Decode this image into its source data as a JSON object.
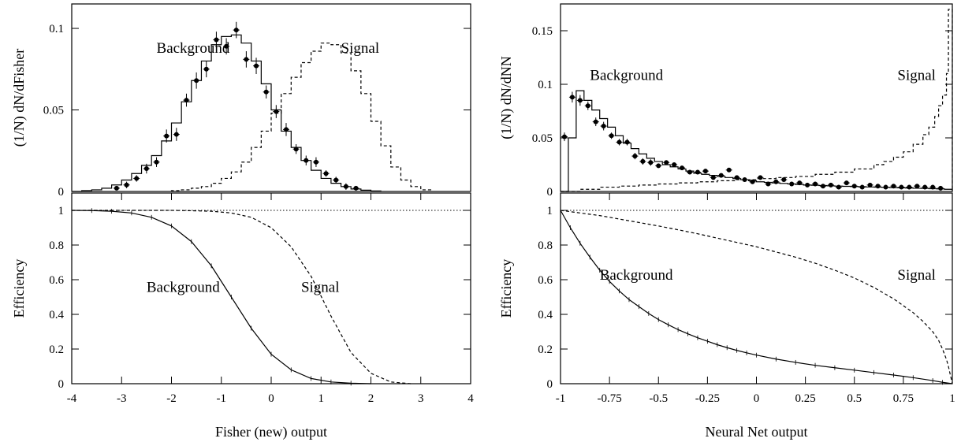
{
  "chart_data": [
    {
      "type": "line",
      "panel": "top-left",
      "ylabel": "(1/N) dN/dFisher",
      "xlim": [
        -4,
        4
      ],
      "ylim": [
        0,
        0.115
      ],
      "yticks": [
        0,
        0.05,
        0.1
      ],
      "ytick_labels": [
        "0",
        "0.05",
        "0.1"
      ],
      "annotations": [
        {
          "text": "Background",
          "x": -2.3,
          "y": 0.085
        },
        {
          "text": "Signal",
          "x": 1.4,
          "y": 0.085
        }
      ],
      "series": [
        {
          "key": "background-mc",
          "style": "solid-step",
          "x": [
            -4.0,
            -3.8,
            -3.6,
            -3.4,
            -3.2,
            -3.0,
            -2.8,
            -2.6,
            -2.4,
            -2.2,
            -2.0,
            -1.8,
            -1.6,
            -1.4,
            -1.2,
            -1.0,
            -0.8,
            -0.6,
            -0.4,
            -0.2,
            0.0,
            0.2,
            0.4,
            0.6,
            0.8,
            1.0,
            1.2,
            1.4,
            1.6,
            1.8,
            2.0,
            2.2
          ],
          "y": [
            0.0,
            0.0005,
            0.001,
            0.002,
            0.004,
            0.007,
            0.011,
            0.016,
            0.022,
            0.031,
            0.042,
            0.055,
            0.068,
            0.08,
            0.09,
            0.095,
            0.096,
            0.091,
            0.08,
            0.066,
            0.05,
            0.037,
            0.027,
            0.019,
            0.013,
            0.008,
            0.005,
            0.003,
            0.0015,
            0.0008,
            0.0003,
            0.0
          ]
        },
        {
          "key": "background-data",
          "style": "points-errorbars",
          "x": [
            -3.1,
            -2.9,
            -2.7,
            -2.5,
            -2.3,
            -2.1,
            -1.9,
            -1.7,
            -1.5,
            -1.3,
            -1.1,
            -0.9,
            -0.7,
            -0.5,
            -0.3,
            -0.1,
            0.1,
            0.3,
            0.5,
            0.7,
            0.9,
            1.1,
            1.3,
            1.5,
            1.7
          ],
          "y": [
            0.002,
            0.004,
            0.008,
            0.014,
            0.018,
            0.034,
            0.035,
            0.056,
            0.068,
            0.075,
            0.093,
            0.089,
            0.099,
            0.081,
            0.077,
            0.061,
            0.049,
            0.038,
            0.026,
            0.019,
            0.018,
            0.011,
            0.007,
            0.003,
            0.002
          ],
          "yerr": [
            0.001,
            0.002,
            0.002,
            0.003,
            0.003,
            0.004,
            0.004,
            0.004,
            0.005,
            0.005,
            0.005,
            0.005,
            0.005,
            0.005,
            0.005,
            0.004,
            0.004,
            0.004,
            0.003,
            0.003,
            0.003,
            0.002,
            0.002,
            0.002,
            0.001
          ]
        },
        {
          "key": "signal",
          "style": "dashed-step",
          "x": [
            -2.0,
            -1.8,
            -1.6,
            -1.4,
            -1.2,
            -1.0,
            -0.8,
            -0.6,
            -0.4,
            -0.2,
            0.0,
            0.2,
            0.4,
            0.6,
            0.8,
            1.0,
            1.2,
            1.4,
            1.6,
            1.8,
            2.0,
            2.2,
            2.4,
            2.6,
            2.8,
            3.0,
            3.2
          ],
          "y": [
            0.0005,
            0.001,
            0.002,
            0.003,
            0.005,
            0.008,
            0.012,
            0.018,
            0.027,
            0.037,
            0.048,
            0.06,
            0.07,
            0.079,
            0.086,
            0.091,
            0.09,
            0.085,
            0.074,
            0.06,
            0.043,
            0.028,
            0.015,
            0.007,
            0.003,
            0.001,
            0.0
          ]
        }
      ]
    },
    {
      "type": "line",
      "panel": "bottom-left",
      "xlabel": "Fisher (new) output",
      "ylabel": "Efficiency",
      "xlim": [
        -4,
        4
      ],
      "ylim": [
        0,
        1.1
      ],
      "xticks": [
        -4,
        -3,
        -2,
        -1,
        0,
        1,
        2,
        3,
        4
      ],
      "xtick_labels": [
        "-4",
        "-3",
        "-2",
        "-1",
        "0",
        "1",
        "2",
        "3",
        "4"
      ],
      "yticks": [
        0,
        0.2,
        0.4,
        0.6,
        0.8,
        1
      ],
      "ytick_labels": [
        "0",
        "0.2",
        "0.4",
        "0.6",
        "0.8",
        "1"
      ],
      "annotations": [
        {
          "text": "Background",
          "x": -2.5,
          "y": 0.53
        },
        {
          "text": "Signal",
          "x": 0.6,
          "y": 0.53
        }
      ],
      "series": [
        {
          "key": "background-eff",
          "style": "solid",
          "x": [
            -4.0,
            -3.6,
            -3.2,
            -2.8,
            -2.4,
            -2.0,
            -1.6,
            -1.2,
            -0.8,
            -0.4,
            0.0,
            0.4,
            0.8,
            1.2,
            1.6,
            2.0
          ],
          "y": [
            1.0,
            0.999,
            0.995,
            0.985,
            0.96,
            0.91,
            0.82,
            0.68,
            0.5,
            0.32,
            0.17,
            0.08,
            0.03,
            0.01,
            0.003,
            0.0
          ]
        },
        {
          "key": "signal-eff",
          "style": "dashed",
          "x": [
            -4.0,
            -2.0,
            -1.6,
            -1.2,
            -0.8,
            -0.4,
            0.0,
            0.4,
            0.8,
            1.2,
            1.6,
            2.0,
            2.4,
            2.8
          ],
          "y": [
            1.0,
            1.0,
            0.998,
            0.995,
            0.985,
            0.96,
            0.9,
            0.79,
            0.62,
            0.39,
            0.18,
            0.06,
            0.01,
            0.0
          ]
        },
        {
          "key": "unity",
          "style": "dotted",
          "x": [
            -4,
            4
          ],
          "y": [
            1,
            1
          ]
        }
      ]
    },
    {
      "type": "line",
      "panel": "top-right",
      "ylabel": "(1/N) dN/dNN",
      "xlim": [
        -1,
        1
      ],
      "ylim": [
        0,
        0.175
      ],
      "yticks": [
        0,
        0.05,
        0.1,
        0.15
      ],
      "ytick_labels": [
        "0",
        "0.05",
        "0.1",
        "0.15"
      ],
      "annotations": [
        {
          "text": "Background",
          "x": -0.85,
          "y": 0.104
        },
        {
          "text": "Signal",
          "x": 0.72,
          "y": 0.104
        }
      ],
      "series": [
        {
          "key": "background-mc",
          "style": "solid-step",
          "x": [
            -1.0,
            -0.96,
            -0.92,
            -0.88,
            -0.84,
            -0.8,
            -0.76,
            -0.72,
            -0.68,
            -0.64,
            -0.6,
            -0.56,
            -0.52,
            -0.48,
            -0.44,
            -0.4,
            -0.36,
            -0.32,
            -0.28,
            -0.24,
            -0.2,
            -0.16,
            -0.12,
            -0.08,
            -0.04,
            0.0,
            0.04,
            0.08,
            0.12,
            0.16,
            0.2,
            0.24,
            0.28,
            0.32,
            0.36,
            0.4,
            0.44,
            0.48,
            0.52,
            0.56,
            0.6,
            0.64,
            0.68,
            0.72,
            0.76,
            0.8,
            0.84,
            0.88,
            0.92,
            0.96,
            1.0
          ],
          "y": [
            0.0,
            0.05,
            0.094,
            0.085,
            0.076,
            0.068,
            0.06,
            0.052,
            0.045,
            0.04,
            0.035,
            0.031,
            0.028,
            0.025,
            0.023,
            0.021,
            0.019,
            0.017,
            0.016,
            0.015,
            0.014,
            0.013,
            0.012,
            0.011,
            0.01,
            0.009,
            0.0085,
            0.008,
            0.0075,
            0.007,
            0.0065,
            0.006,
            0.0058,
            0.0055,
            0.0052,
            0.005,
            0.0048,
            0.0046,
            0.0044,
            0.0042,
            0.004,
            0.0038,
            0.0036,
            0.0034,
            0.0032,
            0.003,
            0.0028,
            0.0026,
            0.0024,
            0.002,
            0.0
          ]
        },
        {
          "key": "background-data",
          "style": "points-errorbars",
          "x": [
            -0.98,
            -0.94,
            -0.9,
            -0.86,
            -0.82,
            -0.78,
            -0.74,
            -0.7,
            -0.66,
            -0.62,
            -0.58,
            -0.54,
            -0.5,
            -0.46,
            -0.42,
            -0.38,
            -0.34,
            -0.3,
            -0.26,
            -0.22,
            -0.18,
            -0.14,
            -0.1,
            -0.06,
            -0.02,
            0.02,
            0.06,
            0.1,
            0.14,
            0.18,
            0.22,
            0.26,
            0.3,
            0.34,
            0.38,
            0.42,
            0.46,
            0.5,
            0.54,
            0.58,
            0.62,
            0.66,
            0.7,
            0.74,
            0.78,
            0.82,
            0.86,
            0.9,
            0.94
          ],
          "y": [
            0.051,
            0.088,
            0.085,
            0.08,
            0.065,
            0.061,
            0.052,
            0.046,
            0.046,
            0.033,
            0.028,
            0.027,
            0.024,
            0.027,
            0.025,
            0.022,
            0.018,
            0.018,
            0.019,
            0.013,
            0.015,
            0.02,
            0.013,
            0.011,
            0.009,
            0.013,
            0.007,
            0.009,
            0.011,
            0.007,
            0.008,
            0.006,
            0.007,
            0.005,
            0.006,
            0.004,
            0.008,
            0.005,
            0.004,
            0.006,
            0.005,
            0.004,
            0.005,
            0.004,
            0.004,
            0.005,
            0.004,
            0.004,
            0.003
          ],
          "yerr": [
            0.004,
            0.005,
            0.005,
            0.004,
            0.004,
            0.004,
            0.003,
            0.003,
            0.003,
            0.003,
            0.003,
            0.003,
            0.002,
            0.002,
            0.002,
            0.002,
            0.002,
            0.002,
            0.002,
            0.002,
            0.002,
            0.002,
            0.002,
            0.002,
            0.002,
            0.002,
            0.002,
            0.002,
            0.002,
            0.002,
            0.002,
            0.002,
            0.002,
            0.002,
            0.002,
            0.002,
            0.002,
            0.002,
            0.002,
            0.002,
            0.002,
            0.002,
            0.002,
            0.002,
            0.002,
            0.002,
            0.002,
            0.002,
            0.002
          ]
        },
        {
          "key": "signal",
          "style": "dashed-step",
          "x": [
            -1.0,
            -0.9,
            -0.8,
            -0.7,
            -0.6,
            -0.5,
            -0.4,
            -0.3,
            -0.2,
            -0.1,
            0.0,
            0.1,
            0.2,
            0.3,
            0.4,
            0.5,
            0.6,
            0.65,
            0.7,
            0.75,
            0.8,
            0.85,
            0.88,
            0.91,
            0.93,
            0.95,
            0.97,
            0.98,
            1.0
          ],
          "y": [
            0.0,
            0.002,
            0.004,
            0.005,
            0.006,
            0.007,
            0.008,
            0.009,
            0.01,
            0.011,
            0.012,
            0.013,
            0.014,
            0.016,
            0.018,
            0.021,
            0.025,
            0.028,
            0.032,
            0.037,
            0.044,
            0.053,
            0.06,
            0.07,
            0.08,
            0.09,
            0.11,
            0.17,
            0.0
          ]
        }
      ]
    },
    {
      "type": "line",
      "panel": "bottom-right",
      "xlabel": "Neural Net output",
      "ylabel": "Efficiency",
      "xlim": [
        -1,
        1
      ],
      "ylim": [
        0,
        1.1
      ],
      "xticks": [
        -1,
        -0.75,
        -0.5,
        -0.25,
        0,
        0.25,
        0.5,
        0.75,
        1
      ],
      "xtick_labels": [
        "-1",
        "-0.75",
        "-0.5",
        "-0.25",
        "0",
        "0.25",
        "0.5",
        "0.75",
        "1"
      ],
      "yticks": [
        0,
        0.2,
        0.4,
        0.6,
        0.8,
        1
      ],
      "ytick_labels": [
        "0",
        "0.2",
        "0.4",
        "0.6",
        "0.8",
        "1"
      ],
      "annotations": [
        {
          "text": "Background",
          "x": -0.8,
          "y": 0.6
        },
        {
          "text": "Signal",
          "x": 0.72,
          "y": 0.6
        }
      ],
      "series": [
        {
          "key": "background-eff",
          "style": "solid",
          "x": [
            -1.0,
            -0.95,
            -0.9,
            -0.85,
            -0.8,
            -0.75,
            -0.7,
            -0.65,
            -0.6,
            -0.55,
            -0.5,
            -0.45,
            -0.4,
            -0.35,
            -0.3,
            -0.25,
            -0.2,
            -0.15,
            -0.1,
            -0.05,
            0.0,
            0.1,
            0.2,
            0.3,
            0.4,
            0.5,
            0.6,
            0.7,
            0.8,
            0.9,
            0.95,
            1.0
          ],
          "y": [
            1.0,
            0.9,
            0.81,
            0.73,
            0.655,
            0.59,
            0.535,
            0.485,
            0.445,
            0.405,
            0.37,
            0.34,
            0.312,
            0.288,
            0.265,
            0.245,
            0.225,
            0.208,
            0.192,
            0.178,
            0.165,
            0.142,
            0.123,
            0.106,
            0.092,
            0.078,
            0.064,
            0.05,
            0.035,
            0.018,
            0.008,
            0.0
          ]
        },
        {
          "key": "signal-eff",
          "style": "dashed",
          "x": [
            -1.0,
            -0.9,
            -0.8,
            -0.7,
            -0.6,
            -0.5,
            -0.4,
            -0.3,
            -0.2,
            -0.1,
            0.0,
            0.1,
            0.2,
            0.3,
            0.4,
            0.5,
            0.6,
            0.7,
            0.8,
            0.85,
            0.9,
            0.93,
            0.95,
            0.97,
            0.98,
            0.99,
            1.0
          ],
          "y": [
            1.0,
            0.985,
            0.97,
            0.95,
            0.93,
            0.91,
            0.888,
            0.865,
            0.84,
            0.815,
            0.79,
            0.76,
            0.73,
            0.695,
            0.655,
            0.61,
            0.555,
            0.49,
            0.41,
            0.36,
            0.3,
            0.25,
            0.2,
            0.14,
            0.1,
            0.05,
            0.0
          ]
        },
        {
          "key": "unity",
          "style": "dotted",
          "x": [
            -1,
            1
          ],
          "y": [
            1,
            1
          ]
        }
      ]
    }
  ]
}
